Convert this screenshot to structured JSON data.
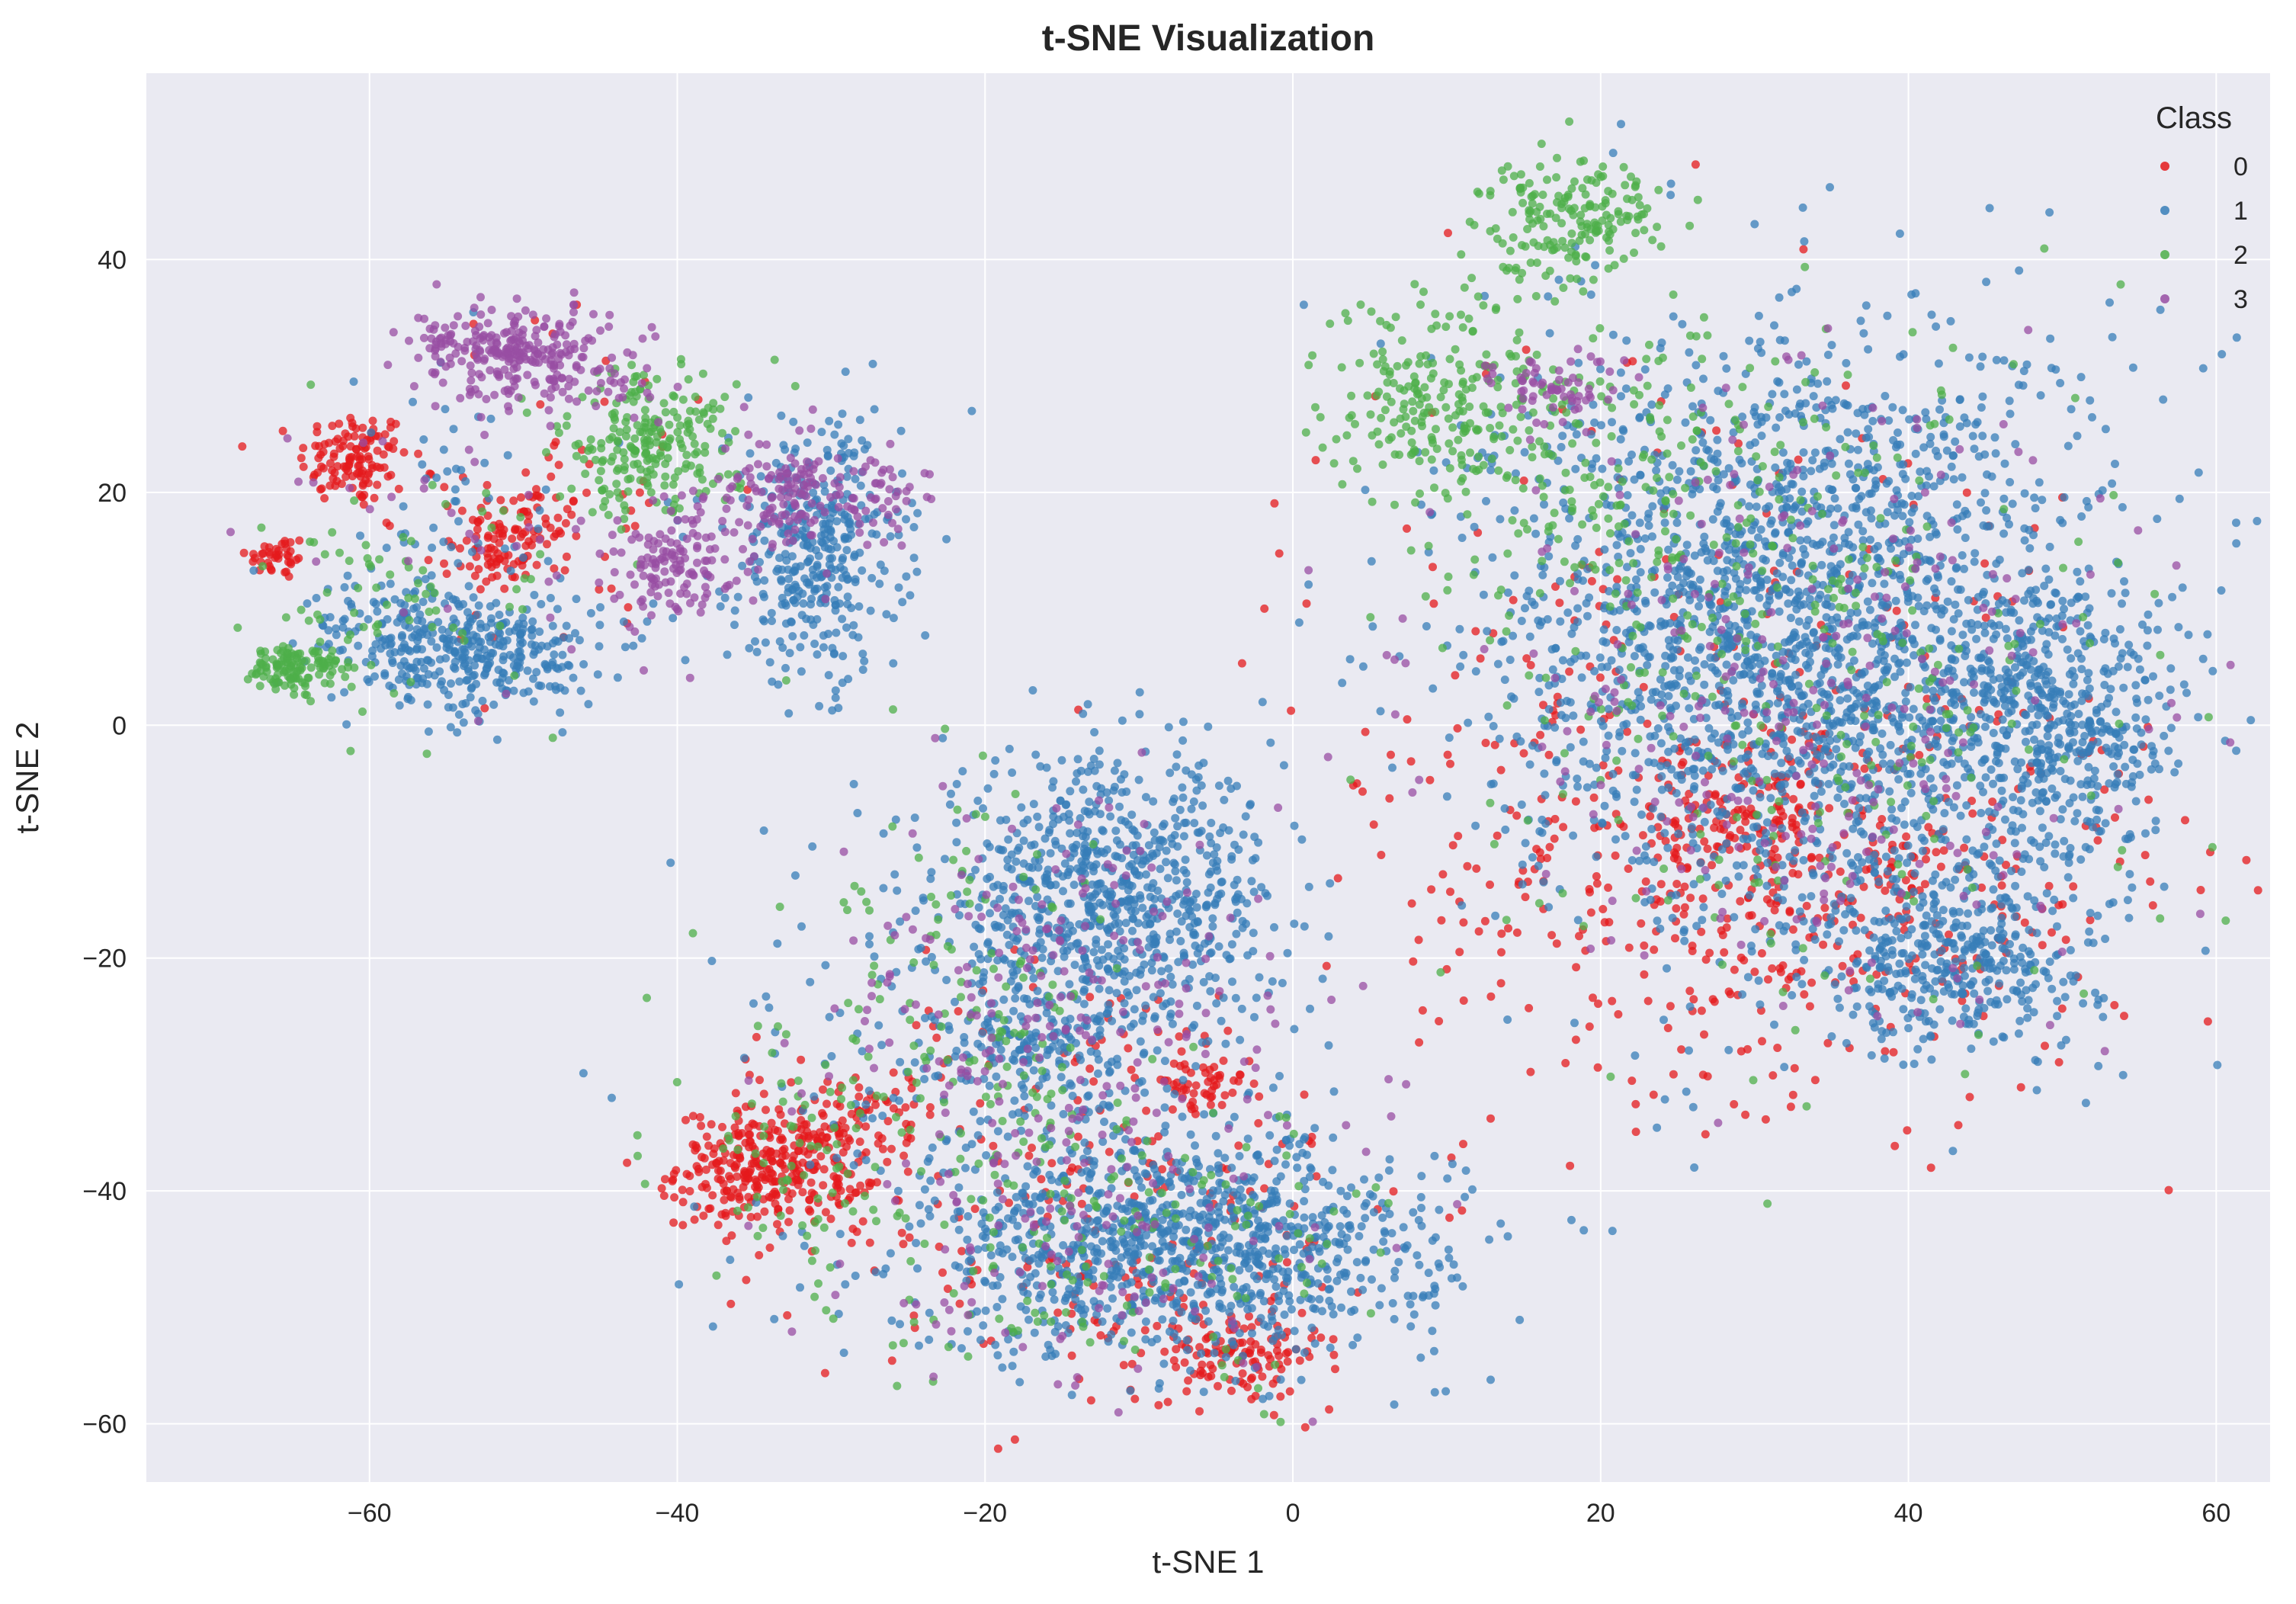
{
  "chart_data": {
    "type": "scatter",
    "title": "t-SNE Visualization",
    "xlabel": "t-SNE 1",
    "ylabel": "t-SNE 2",
    "xlim": [
      -74.5,
      63.5
    ],
    "ylim": [
      -65,
      56
    ],
    "xticks": [
      -60,
      -40,
      -20,
      0,
      20,
      40,
      60
    ],
    "yticks": [
      -60,
      -40,
      -20,
      0,
      20,
      40
    ],
    "grid": true,
    "legend": {
      "title": "Class",
      "placement": "top-right"
    },
    "colors": {
      "background": "#eaeaf2",
      "grid": "#ffffff",
      "text": "#262626"
    },
    "series": [
      {
        "name": "0",
        "color": "#e41a1c",
        "clusters": [
          {
            "cx": -61,
            "cy": 23,
            "sx": 1.8,
            "sy": 2.0,
            "n": 120
          },
          {
            "cx": -66,
            "cy": 14.5,
            "sx": 1.0,
            "sy": 1.0,
            "n": 40
          },
          {
            "cx": -50,
            "cy": 17,
            "sx": 2.0,
            "sy": 1.8,
            "n": 70
          },
          {
            "cx": -52,
            "cy": 14,
            "sx": 1.2,
            "sy": 1.2,
            "n": 40
          },
          {
            "cx": -48,
            "cy": 20,
            "sx": 6.0,
            "sy": 8.0,
            "n": 60
          },
          {
            "cx": -34,
            "cy": -38,
            "sx": 3.0,
            "sy": 2.5,
            "n": 300
          },
          {
            "cx": -29,
            "cy": -35,
            "sx": 3.0,
            "sy": 3.0,
            "n": 80
          },
          {
            "cx": -6,
            "cy": -31,
            "sx": 2.0,
            "sy": 1.0,
            "n": 40
          },
          {
            "cx": -4,
            "cy": -54,
            "sx": 3.0,
            "sy": 2.0,
            "n": 120
          },
          {
            "cx": -12,
            "cy": -40,
            "sx": 10.0,
            "sy": 10.0,
            "n": 250
          },
          {
            "cx": 30,
            "cy": -8,
            "sx": 3.0,
            "sy": 3.0,
            "n": 100
          },
          {
            "cx": 32,
            "cy": -14,
            "sx": 12.0,
            "sy": 9.0,
            "n": 450
          },
          {
            "cx": 25,
            "cy": 5,
            "sx": 13.0,
            "sy": 15.0,
            "n": 200
          }
        ]
      },
      {
        "name": "1",
        "color": "#377eb8",
        "clusters": [
          {
            "cx": -52,
            "cy": 6,
            "sx": 3.5,
            "sy": 2.5,
            "n": 260
          },
          {
            "cx": -58,
            "cy": 8,
            "sx": 3.0,
            "sy": 2.5,
            "n": 120
          },
          {
            "cx": -31,
            "cy": 15,
            "sx": 2.8,
            "sy": 5.5,
            "n": 380
          },
          {
            "cx": -55,
            "cy": 15,
            "sx": 6.0,
            "sy": 8.0,
            "n": 80
          },
          {
            "cx": -12,
            "cy": -15,
            "sx": 5.5,
            "sy": 6.0,
            "n": 800
          },
          {
            "cx": -17,
            "cy": -28,
            "sx": 3.0,
            "sy": 3.0,
            "n": 120
          },
          {
            "cx": -7,
            "cy": -45,
            "sx": 8.5,
            "sy": 4.5,
            "n": 1000
          },
          {
            "cx": -18,
            "cy": -30,
            "sx": 9.0,
            "sy": 9.0,
            "n": 200
          },
          {
            "cx": 33,
            "cy": 8,
            "sx": 10.0,
            "sy": 13.0,
            "n": 2200
          },
          {
            "cx": 43,
            "cy": -20,
            "sx": 4.5,
            "sy": 4.0,
            "n": 380
          },
          {
            "cx": 50,
            "cy": 0,
            "sx": 4.0,
            "sy": 6.0,
            "n": 420
          }
        ]
      },
      {
        "name": "2",
        "color": "#4daf4a",
        "clusters": [
          {
            "cx": -65,
            "cy": 5,
            "sx": 1.5,
            "sy": 1.0,
            "n": 120
          },
          {
            "cx": -42,
            "cy": 24,
            "sx": 3.0,
            "sy": 3.0,
            "n": 230
          },
          {
            "cx": -58,
            "cy": 10,
            "sx": 5.0,
            "sy": 5.0,
            "n": 80
          },
          {
            "cx": -33,
            "cy": -38,
            "sx": 3.5,
            "sy": 6.0,
            "n": 60
          },
          {
            "cx": -20,
            "cy": -28,
            "sx": 6.0,
            "sy": 10.0,
            "n": 170
          },
          {
            "cx": -10,
            "cy": -45,
            "sx": 8.0,
            "sy": 6.0,
            "n": 140
          },
          {
            "cx": 18,
            "cy": 44,
            "sx": 3.0,
            "sy": 2.5,
            "n": 180
          },
          {
            "cx": 10,
            "cy": 28,
            "sx": 4.0,
            "sy": 4.5,
            "n": 220
          },
          {
            "cx": 20,
            "cy": 20,
            "sx": 6.0,
            "sy": 8.0,
            "n": 200
          },
          {
            "cx": 35,
            "cy": 5,
            "sx": 10.0,
            "sy": 15.0,
            "n": 280
          }
        ]
      },
      {
        "name": "3",
        "color": "#984ea3",
        "clusters": [
          {
            "cx": -51,
            "cy": 32,
            "sx": 3.0,
            "sy": 2.0,
            "n": 220
          },
          {
            "cx": -46,
            "cy": 31,
            "sx": 2.5,
            "sy": 2.5,
            "n": 60
          },
          {
            "cx": -40,
            "cy": 14,
            "sx": 2.0,
            "sy": 2.5,
            "n": 140
          },
          {
            "cx": -33,
            "cy": 20,
            "sx": 2.0,
            "sy": 2.5,
            "n": 120
          },
          {
            "cx": -27,
            "cy": 20,
            "sx": 1.5,
            "sy": 2.0,
            "n": 50
          },
          {
            "cx": -55,
            "cy": 18,
            "sx": 6.0,
            "sy": 8.0,
            "n": 40
          },
          {
            "cx": -15,
            "cy": -25,
            "sx": 8.0,
            "sy": 10.0,
            "n": 220
          },
          {
            "cx": -12,
            "cy": -45,
            "sx": 8.0,
            "sy": 6.0,
            "n": 100
          },
          {
            "cx": 17,
            "cy": 29,
            "sx": 2.0,
            "sy": 1.5,
            "n": 60
          },
          {
            "cx": 33,
            "cy": 3,
            "sx": 11.0,
            "sy": 14.0,
            "n": 300
          }
        ]
      }
    ]
  }
}
